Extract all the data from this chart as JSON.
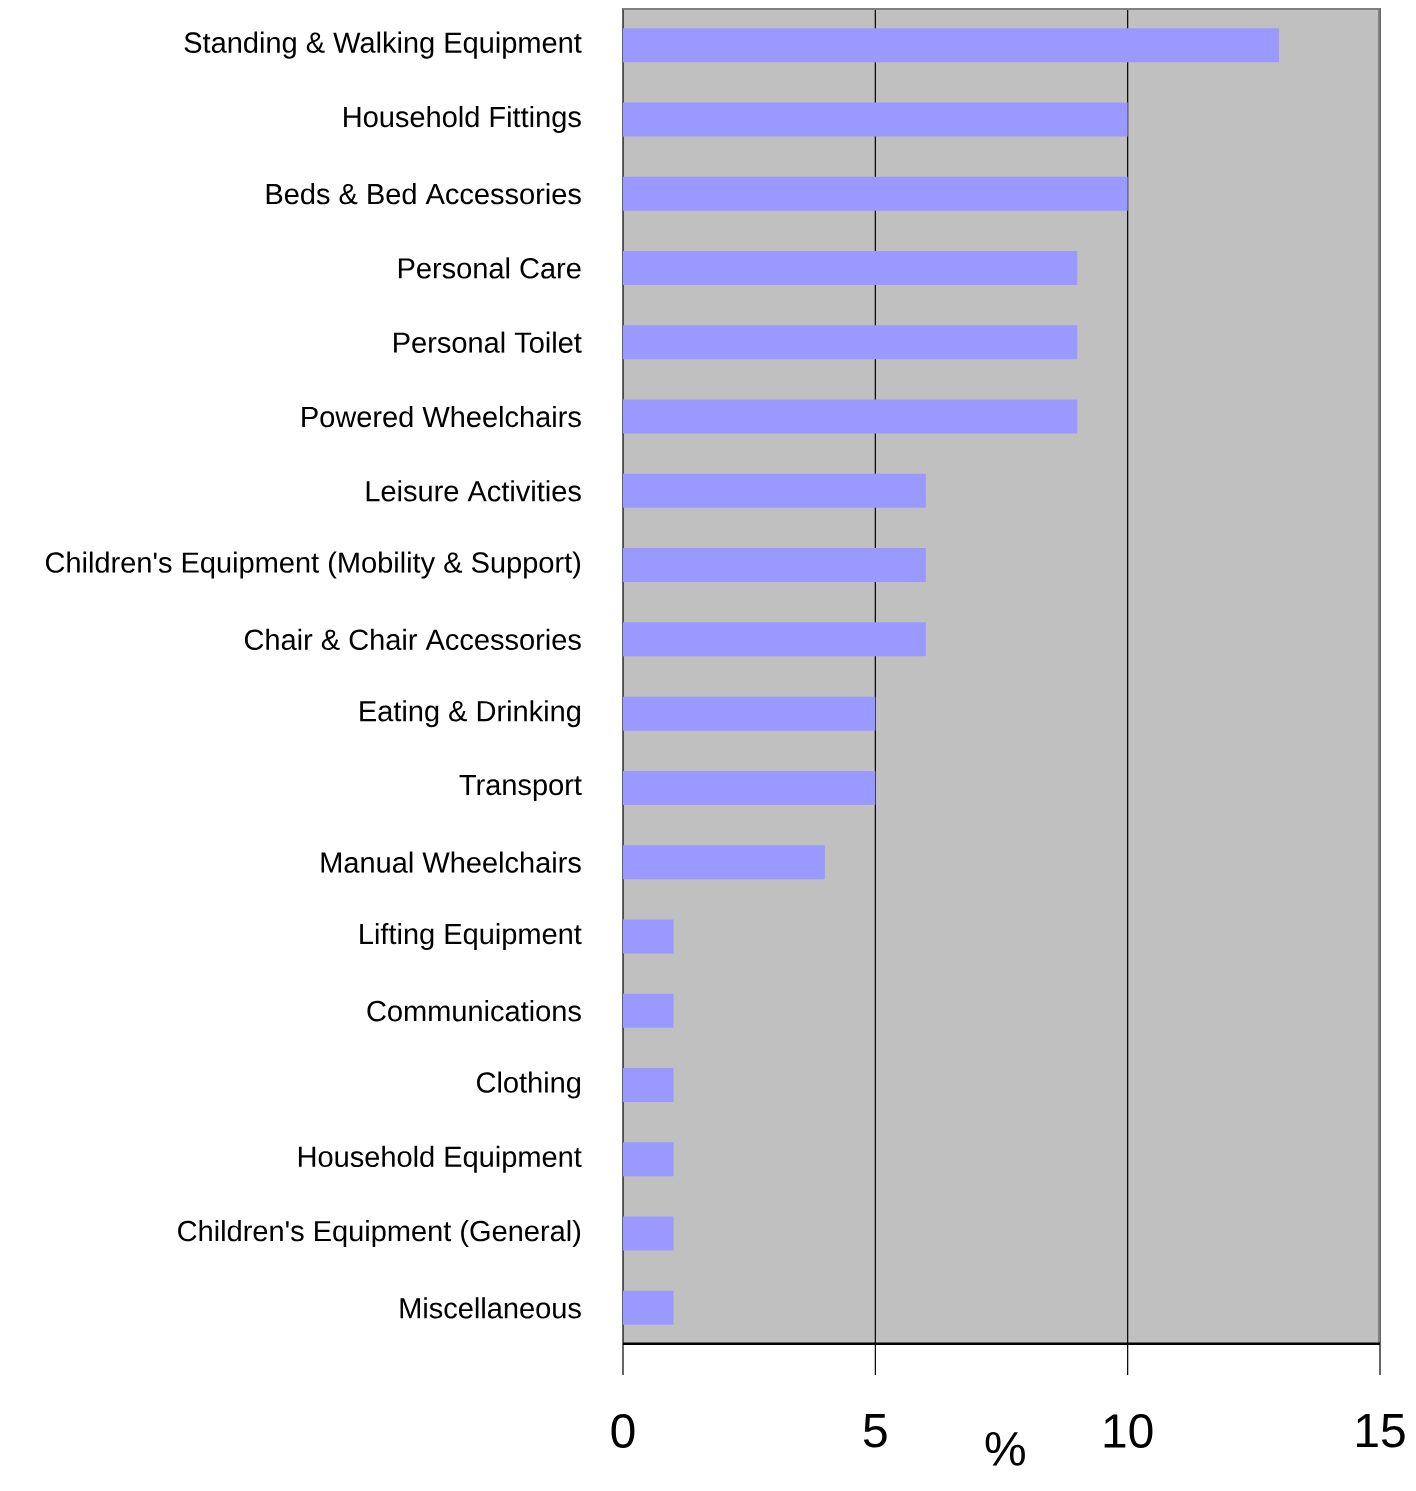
{
  "chart_data": {
    "type": "bar",
    "orientation": "horizontal",
    "xlabel": "%",
    "categories": [
      "Standing & Walking Equipment",
      "Household Fittings",
      "Beds & Bed Accessories",
      "Personal Care",
      "Personal Toilet",
      "Powered Wheelchairs",
      "Leisure Activities",
      "Children's Equipment (Mobility & Support)",
      "Chair & Chair Accessories",
      "Eating & Drinking",
      "Transport",
      "Manual Wheelchairs",
      "Lifting Equipment",
      "Communications",
      "Clothing",
      "Household Equipment",
      "Children's Equipment (General)",
      "Miscellaneous"
    ],
    "values": [
      13,
      10,
      10,
      9,
      9,
      9,
      6,
      6,
      6,
      5,
      5,
      4,
      1,
      1,
      1,
      1,
      1,
      1
    ],
    "color": "#9999ff",
    "xlim": [
      0,
      15
    ],
    "xticks": [
      0,
      5,
      10,
      15
    ],
    "grid": "x"
  }
}
